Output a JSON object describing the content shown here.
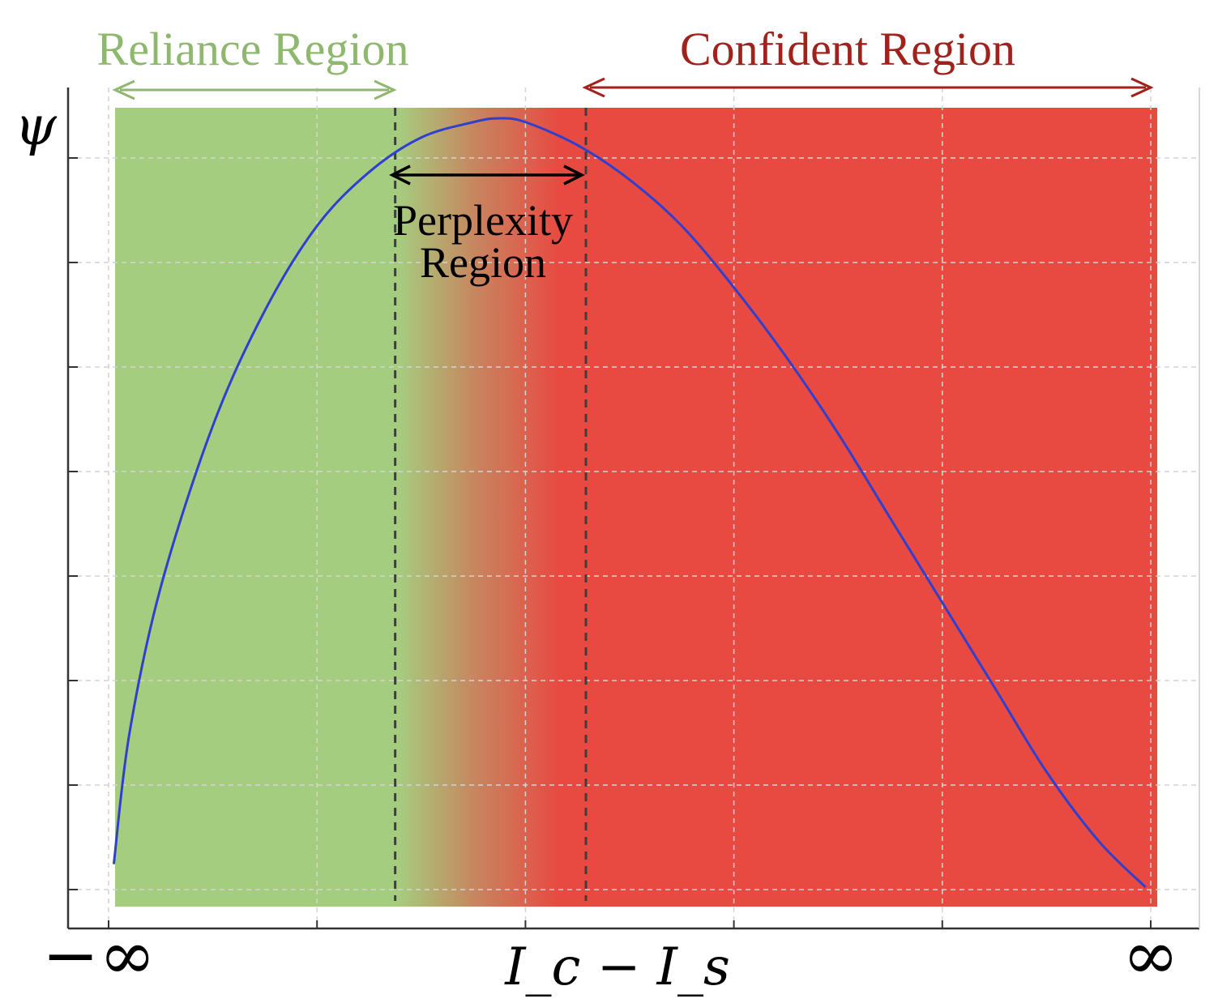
{
  "chart_data": {
    "type": "line",
    "title": "",
    "xlabel": "I_c − I_s",
    "ylabel": "ψ",
    "x_left_label": "−∞",
    "x_right_label": "∞",
    "xlim": [
      0.0,
      1.0
    ],
    "ylim": [
      0.0,
      1.0
    ],
    "x_ticks": [
      0.0,
      0.2,
      0.4,
      0.6,
      0.8,
      1.0
    ],
    "grid": true,
    "regions": [
      {
        "name": "Reliance Region",
        "x_start": 0.0,
        "x_end": 0.275,
        "color": "#a5cd7f",
        "label_color": "#8db86d"
      },
      {
        "name": "Perplexity Region",
        "x_start": 0.275,
        "x_end": 0.458,
        "label_color": "#000000"
      },
      {
        "name": "Confident Region",
        "x_start": 0.458,
        "x_end": 1.0,
        "color": "#e84a42",
        "label_color": "#a0221c"
      }
    ],
    "perplexity_label_lines": [
      "Perplexity",
      "Region"
    ],
    "region_boundaries": [
      0.275,
      0.458
    ],
    "series": [
      {
        "color": "#2f3fd0",
        "x": [
          0.005,
          0.02,
          0.05,
          0.1,
          0.15,
          0.2,
          0.25,
          0.3,
          0.35,
          0.375,
          0.4,
          0.45,
          0.5,
          0.55,
          0.6,
          0.65,
          0.7,
          0.75,
          0.8,
          0.85,
          0.9,
          0.95,
          0.995
        ],
        "y": [
          0.03,
          0.2,
          0.39,
          0.6,
          0.75,
          0.86,
          0.93,
          0.975,
          0.995,
          1.0,
          0.995,
          0.965,
          0.92,
          0.86,
          0.78,
          0.69,
          0.59,
          0.48,
          0.37,
          0.26,
          0.15,
          0.06,
          0.0
        ]
      }
    ]
  }
}
